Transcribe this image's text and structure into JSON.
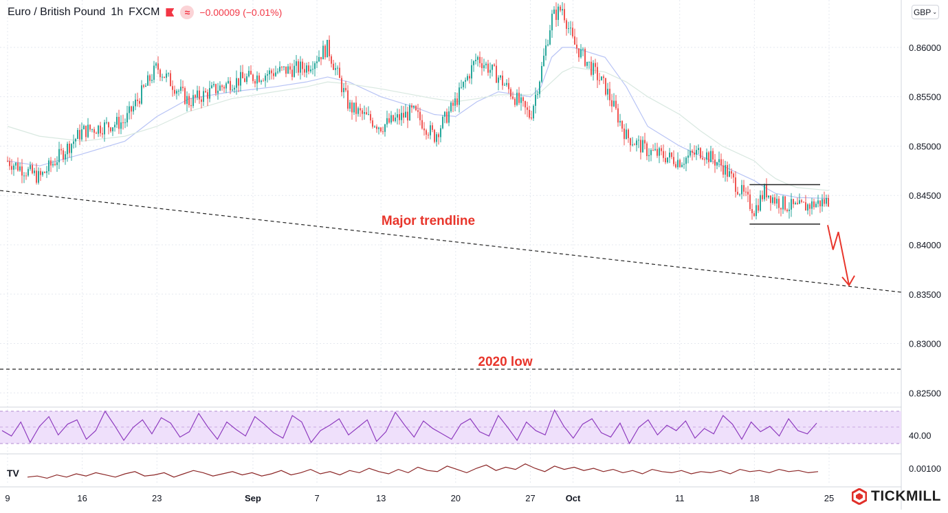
{
  "header": {
    "symbol": "Euro / British Pound",
    "interval": "1h",
    "source": "FXCM",
    "change": "−0.00009 (−0.01%)",
    "flag_icon": "flag-icon",
    "indicator_icon": "approx-icon"
  },
  "currency_button": {
    "label": "GBP",
    "icon": "chevron-down-icon"
  },
  "brand": {
    "name": "TICKMILL",
    "icon": "tickmill-logo-icon",
    "color": "#e0302a"
  },
  "tv_logo": "TV",
  "chart_data": {
    "type": "line",
    "price_axis": {
      "ticks": [
        "0.86000",
        "0.85500",
        "0.85000",
        "0.84500",
        "0.84000",
        "0.83500",
        "0.83000",
        "0.82500"
      ],
      "values": [
        0.86,
        0.855,
        0.85,
        0.845,
        0.84,
        0.835,
        0.83,
        0.825
      ],
      "ylim": [
        0.8237,
        0.8648
      ]
    },
    "x_axis": {
      "labels": [
        "9",
        "16",
        "23",
        "Sep",
        "7",
        "13",
        "20",
        "27",
        "Oct",
        "11",
        "18",
        "25"
      ],
      "bold": [
        false,
        false,
        false,
        true,
        false,
        false,
        false,
        false,
        true,
        false,
        false,
        false
      ],
      "dates": [
        "Aug 9",
        "Aug 16",
        "Aug 23",
        "Sep 1",
        "Sep 7",
        "Sep 13",
        "Sep 20",
        "Sep 27",
        "Oct 1",
        "Oct 11",
        "Oct 18",
        "Oct 25"
      ]
    },
    "price_series": {
      "name": "EUR/GBP",
      "x": [
        "Aug 9",
        "Aug 12",
        "Aug 16",
        "Aug 20",
        "Aug 23",
        "Aug 26",
        "Aug 30",
        "Sep 3",
        "Sep 6",
        "Sep 8",
        "Sep 10",
        "Sep 13",
        "Sep 16",
        "Sep 18",
        "Sep 20",
        "Sep 22",
        "Sep 24",
        "Sep 27",
        "Sep 28",
        "Sep 29",
        "Sep 30",
        "Oct 1",
        "Oct 4",
        "Oct 6",
        "Oct 8",
        "Oct 11",
        "Oct 13",
        "Oct 15",
        "Oct 18",
        "Oct 19",
        "Oct 20",
        "Oct 21",
        "Oct 22",
        "Oct 25"
      ],
      "y": [
        0.8485,
        0.8468,
        0.8515,
        0.8525,
        0.858,
        0.8545,
        0.8565,
        0.8575,
        0.858,
        0.86,
        0.854,
        0.852,
        0.8535,
        0.851,
        0.8545,
        0.859,
        0.857,
        0.853,
        0.8575,
        0.863,
        0.864,
        0.8605,
        0.856,
        0.851,
        0.8495,
        0.8485,
        0.8495,
        0.848,
        0.8435,
        0.8455,
        0.8445,
        0.844,
        0.8437,
        0.8445
      ],
      "color_up": "#26a69a",
      "color_down": "#ef5350"
    },
    "moving_averages": [
      {
        "color": "#b7c3f5",
        "y": [
          0.8485,
          0.848,
          0.8492,
          0.8505,
          0.853,
          0.8548,
          0.8555,
          0.856,
          0.8565,
          0.857,
          0.8565,
          0.855,
          0.854,
          0.8532,
          0.853,
          0.8545,
          0.8555,
          0.855,
          0.856,
          0.859,
          0.86,
          0.86,
          0.859,
          0.856,
          0.852,
          0.85,
          0.849,
          0.848,
          0.8465,
          0.8458,
          0.8452,
          0.845,
          0.8448,
          0.8447
        ]
      },
      {
        "color": "#d8e8e0",
        "y": [
          0.852,
          0.851,
          0.8505,
          0.851,
          0.852,
          0.8535,
          0.8548,
          0.8555,
          0.856,
          0.8565,
          0.8563,
          0.8558,
          0.8552,
          0.8548,
          0.8545,
          0.8548,
          0.8552,
          0.8552,
          0.8555,
          0.8565,
          0.8575,
          0.858,
          0.8575,
          0.8565,
          0.855,
          0.8532,
          0.8515,
          0.85,
          0.8485,
          0.8475,
          0.8467,
          0.8462,
          0.8458,
          0.8455
        ]
      }
    ],
    "major_trendline": {
      "x": [
        "Aug 9",
        "Oct 27"
      ],
      "y": [
        0.8455,
        0.8352
      ],
      "color": "#222222",
      "dash": true
    },
    "low_2020": {
      "y": 0.8274,
      "color": "#222222",
      "dash": true
    },
    "range_box": {
      "x": [
        "Oct 18",
        "Oct 25"
      ],
      "top": 0.8461,
      "bottom": 0.8421,
      "color": "#222222"
    },
    "projection": {
      "x": [
        "Oct 25",
        "Oct 25.5",
        "Oct 26",
        "Oct 27"
      ],
      "y": [
        0.842,
        0.8395,
        0.8413,
        0.8359
      ],
      "color": "#e8352b"
    },
    "annotations": [
      {
        "text": "Major trendline",
        "color": "#e8352b"
      },
      {
        "text": "2020 low",
        "color": "#e8352b"
      }
    ],
    "rsi": {
      "label": "40.00",
      "band_color": "#efe0fb",
      "line_color": "#8e3bbf",
      "values": [
        52,
        47,
        60,
        41,
        56,
        65,
        48,
        58,
        62,
        44,
        52,
        70,
        57,
        43,
        55,
        62,
        49,
        64,
        59,
        46,
        51,
        68,
        55,
        44,
        60,
        53,
        47,
        65,
        58,
        50,
        45,
        66,
        60,
        41,
        52,
        57,
        63,
        48,
        55,
        62,
        42,
        51,
        69,
        57,
        46,
        61,
        54,
        49,
        44,
        58,
        63,
        51,
        47,
        66,
        55,
        43,
        60,
        52,
        48,
        71,
        56,
        45,
        58,
        63,
        50,
        46,
        59,
        40,
        55,
        62,
        48,
        57,
        52,
        61,
        45,
        54,
        49,
        66,
        58,
        44,
        60,
        51,
        56,
        47,
        63,
        52,
        49,
        59
      ]
    },
    "macd": {
      "label": "0.00100",
      "line_color": "#8a2424",
      "values": [
        2,
        3,
        1,
        4,
        2,
        5,
        3,
        6,
        4,
        2,
        5,
        7,
        3,
        4,
        6,
        2,
        5,
        8,
        6,
        3,
        5,
        7,
        4,
        6,
        3,
        5,
        8,
        4,
        6,
        9,
        5,
        7,
        4,
        8,
        6,
        10,
        7,
        5,
        9,
        6,
        11,
        8,
        7,
        12,
        9,
        6,
        10,
        13,
        8,
        11,
        9,
        14,
        10,
        7,
        12,
        9,
        11,
        8,
        10,
        7,
        9,
        6,
        8,
        5,
        9,
        7,
        6,
        8,
        5,
        7,
        6,
        8,
        5,
        9,
        7,
        8,
        6,
        9,
        7,
        8,
        6,
        7
      ]
    }
  }
}
